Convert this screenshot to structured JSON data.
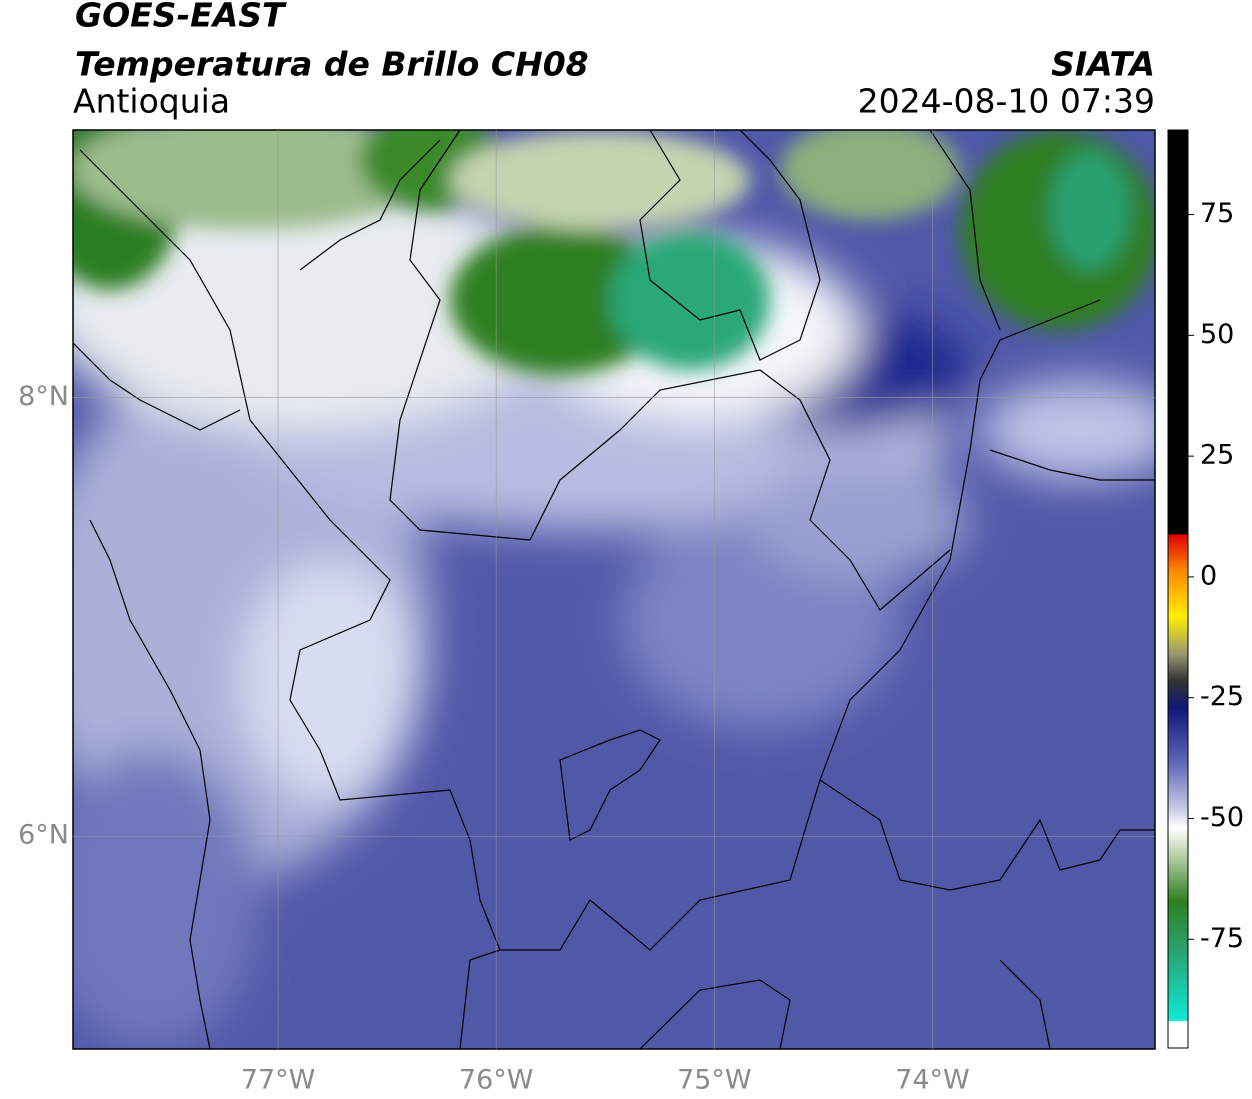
{
  "map": {
    "title": "GOES-EAST",
    "subtitle": "Temperatura de Brillo CH08",
    "region": "Antioquia",
    "source": "SIATA",
    "timestamp": "2024-08-10 07:39",
    "xlim": [
      -77.94,
      -72.98
    ],
    "ylim": [
      5.03,
      9.22
    ],
    "xticks": [
      {
        "value": -77,
        "label": "77°W"
      },
      {
        "value": -76,
        "label": "76°W"
      },
      {
        "value": -75,
        "label": "75°W"
      },
      {
        "value": -74,
        "label": "74°W"
      }
    ],
    "yticks": [
      {
        "value": 8,
        "label": "8°N"
      },
      {
        "value": 6,
        "label": "6°N"
      }
    ],
    "grid": true,
    "colorbar": {
      "lim": [
        -97.5,
        92.5
      ],
      "ticks": [
        75,
        50,
        25,
        0,
        -25,
        -50,
        -75
      ]
    }
  }
}
